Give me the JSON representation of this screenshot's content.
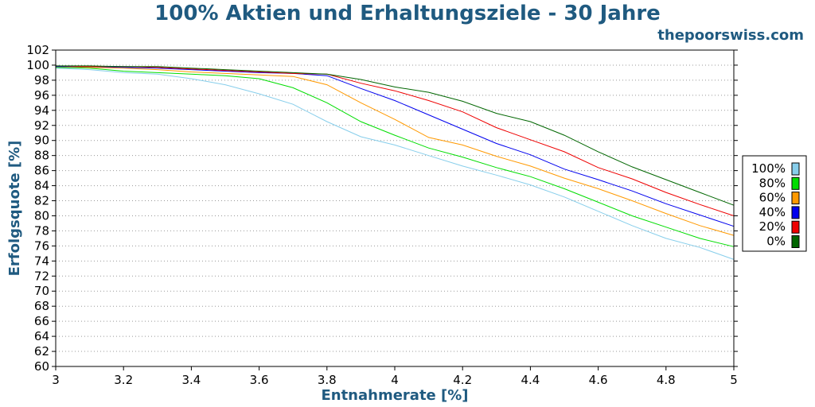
{
  "header": {
    "title": "100% Aktien und Erhaltungsziele - 30 Jahre",
    "brand": "thepoorswiss.com"
  },
  "chart_data": {
    "type": "line",
    "title": "100% Aktien und Erhaltungsziele - 30 Jahre",
    "xlabel": "Entnahmerate [%]",
    "ylabel": "Erfolgsquote [%]",
    "xlim": [
      3,
      5
    ],
    "ylim": [
      60,
      102
    ],
    "x_ticks": [
      "3",
      "3.2",
      "3.4",
      "3.6",
      "3.8",
      "4",
      "4.2",
      "4.4",
      "4.6",
      "4.8",
      "5"
    ],
    "y_ticks": [
      "60",
      "62",
      "64",
      "66",
      "68",
      "70",
      "72",
      "74",
      "76",
      "78",
      "80",
      "82",
      "84",
      "86",
      "88",
      "90",
      "92",
      "94",
      "96",
      "98",
      "100",
      "102"
    ],
    "grid": "dotted horizontal",
    "legend_position": "right",
    "x": [
      3.0,
      3.1,
      3.2,
      3.3,
      3.4,
      3.5,
      3.6,
      3.7,
      3.8,
      3.9,
      4.0,
      4.1,
      4.2,
      4.3,
      4.4,
      4.5,
      4.6,
      4.7,
      4.8,
      4.9,
      5.0
    ],
    "series": [
      {
        "name": "100%",
        "color": "#87ceeb",
        "values": [
          99.6,
          99.4,
          99.0,
          98.8,
          98.2,
          97.4,
          96.2,
          94.8,
          92.5,
          90.5,
          89.4,
          88.0,
          86.6,
          85.4,
          84.1,
          82.5,
          80.6,
          78.7,
          77.0,
          75.8,
          74.2
        ]
      },
      {
        "name": "80%",
        "color": "#00dd00",
        "values": [
          99.7,
          99.6,
          99.2,
          99.0,
          98.8,
          98.6,
          98.2,
          97.0,
          95.0,
          92.5,
          90.7,
          89.0,
          87.8,
          86.4,
          85.2,
          83.6,
          81.8,
          80.0,
          78.5,
          77.0,
          75.9
        ]
      },
      {
        "name": "60%",
        "color": "#ff9900",
        "values": [
          99.8,
          99.7,
          99.6,
          99.4,
          99.1,
          98.9,
          98.7,
          98.5,
          97.4,
          95.0,
          92.8,
          90.4,
          89.4,
          87.9,
          86.6,
          85.0,
          83.6,
          82.0,
          80.3,
          78.7,
          77.4
        ]
      },
      {
        "name": "40%",
        "color": "#0000ee",
        "values": [
          99.8,
          99.8,
          99.7,
          99.6,
          99.4,
          99.2,
          99.0,
          98.9,
          98.6,
          96.9,
          95.3,
          93.4,
          91.5,
          89.6,
          88.1,
          86.2,
          84.8,
          83.3,
          81.6,
          80.1,
          78.6
        ]
      },
      {
        "name": "20%",
        "color": "#ee0000",
        "values": [
          99.9,
          99.8,
          99.8,
          99.7,
          99.5,
          99.3,
          99.1,
          98.9,
          98.8,
          97.6,
          96.6,
          95.3,
          93.8,
          91.7,
          90.1,
          88.5,
          86.4,
          84.9,
          83.1,
          81.5,
          80.0
        ]
      },
      {
        "name": "0%",
        "color": "#006600",
        "values": [
          99.9,
          99.9,
          99.8,
          99.8,
          99.6,
          99.4,
          99.2,
          99.0,
          98.8,
          98.1,
          97.1,
          96.4,
          95.2,
          93.6,
          92.5,
          90.7,
          88.5,
          86.5,
          84.8,
          83.1,
          81.4
        ]
      }
    ]
  }
}
